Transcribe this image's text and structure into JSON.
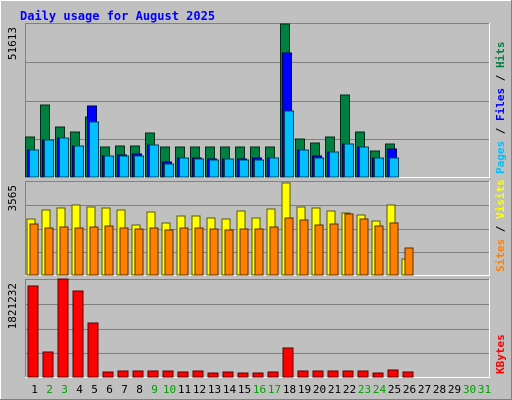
{
  "title": "Daily usage for August 2025",
  "colors": {
    "background": "#C0C0C0",
    "title": "#0000FF",
    "hits": "#008040",
    "files": "#0000FF",
    "pages": "#00C0FF",
    "visits": "#FFFF00",
    "sites": "#FF8000",
    "kbytes": "#FF0000",
    "weekend_label": "#00A000",
    "weekday_label": "#000000"
  },
  "chart_data": [
    {
      "type": "bar",
      "name": "hits-files-pages",
      "y_label_max": "51613",
      "side_labels": [
        "Pages",
        "Files",
        "Hits"
      ],
      "ylim": [
        0,
        51613
      ],
      "categories": [
        "1",
        "2",
        "3",
        "4",
        "5",
        "6",
        "7",
        "8",
        "9",
        "10",
        "11",
        "12",
        "13",
        "14",
        "15",
        "16",
        "17",
        "18",
        "19",
        "20",
        "21",
        "22",
        "23",
        "24",
        "25",
        "26",
        "27",
        "28",
        "29",
        "30",
        "31"
      ],
      "series": [
        {
          "name": "Hits",
          "values": [
            13400,
            24400,
            16800,
            15100,
            20200,
            10000,
            10400,
            10400,
            14700,
            10100,
            10100,
            10100,
            10100,
            10000,
            10000,
            10100,
            10100,
            51600,
            12800,
            11500,
            13400,
            27800,
            15100,
            8700,
            11100,
            0,
            0,
            0,
            0,
            0,
            0
          ]
        },
        {
          "name": "Files",
          "values": [
            9000,
            12600,
            13300,
            10400,
            24000,
            7100,
            7300,
            7600,
            10700,
            5100,
            6300,
            6500,
            6100,
            6000,
            6000,
            6300,
            6500,
            41800,
            9000,
            7000,
            8400,
            11000,
            10200,
            6300,
            9300,
            0,
            0,
            0,
            0,
            0,
            0
          ]
        },
        {
          "name": "Pages",
          "values": [
            9000,
            12600,
            13300,
            10400,
            18600,
            7100,
            7000,
            7000,
            10700,
            4400,
            6300,
            6100,
            5700,
            6000,
            5700,
            5600,
            6500,
            22200,
            9000,
            6500,
            8400,
            11000,
            10200,
            6300,
            6300,
            0,
            0,
            0,
            0,
            0,
            0
          ]
        }
      ]
    },
    {
      "type": "bar",
      "name": "visits-sites",
      "y_label_max": "3565",
      "side_labels": [
        "Sites",
        "Visits"
      ],
      "ylim": [
        0,
        3565
      ],
      "categories": [
        "1",
        "2",
        "3",
        "4",
        "5",
        "6",
        "7",
        "8",
        "9",
        "10",
        "11",
        "12",
        "13",
        "14",
        "15",
        "16",
        "17",
        "18",
        "19",
        "20",
        "21",
        "22",
        "23",
        "24",
        "25",
        "26",
        "27",
        "28",
        "29",
        "30",
        "31"
      ],
      "series": [
        {
          "name": "Visits",
          "values": [
            2130,
            2480,
            2550,
            2700,
            2610,
            2560,
            2480,
            1920,
            2410,
            2000,
            2250,
            2270,
            2190,
            2140,
            2470,
            2180,
            2540,
            3530,
            2610,
            2560,
            2460,
            2360,
            2300,
            2080,
            2670,
            620,
            0,
            0,
            0,
            0,
            0
          ]
        },
        {
          "name": "Sites",
          "values": [
            1950,
            1790,
            1840,
            1790,
            1850,
            1860,
            1800,
            1750,
            1800,
            1710,
            1820,
            1810,
            1780,
            1720,
            1750,
            1760,
            1830,
            2200,
            2120,
            1930,
            1960,
            2330,
            2150,
            1880,
            1980,
            1030,
            0,
            0,
            0,
            0,
            0
          ]
        }
      ]
    },
    {
      "type": "bar",
      "name": "kbytes",
      "y_label_max": "1821232",
      "side_labels": [
        "KBytes"
      ],
      "ylim": [
        0,
        1821232
      ],
      "categories": [
        "1",
        "2",
        "3",
        "4",
        "5",
        "6",
        "7",
        "8",
        "9",
        "10",
        "11",
        "12",
        "13",
        "14",
        "15",
        "16",
        "17",
        "18",
        "19",
        "20",
        "21",
        "22",
        "23",
        "24",
        "25",
        "26",
        "27",
        "28",
        "29",
        "30",
        "31"
      ],
      "series": [
        {
          "name": "KBytes",
          "values": [
            1710000,
            470000,
            1840000,
            1610000,
            1010000,
            100000,
            110000,
            110000,
            110000,
            110000,
            100000,
            110000,
            80000,
            90000,
            80000,
            80000,
            90000,
            540000,
            110000,
            110000,
            110000,
            110000,
            110000,
            80000,
            130000,
            90000,
            0,
            0,
            0,
            0,
            0
          ]
        }
      ]
    }
  ],
  "x_axis": {
    "labels": [
      "1",
      "2",
      "3",
      "4",
      "5",
      "6",
      "7",
      "8",
      "9",
      "10",
      "11",
      "12",
      "13",
      "14",
      "15",
      "16",
      "17",
      "18",
      "19",
      "20",
      "21",
      "22",
      "23",
      "24",
      "25",
      "26",
      "27",
      "28",
      "29",
      "30",
      "31"
    ],
    "weekend_days": [
      "2",
      "3",
      "9",
      "10",
      "16",
      "17",
      "23",
      "24",
      "30",
      "31"
    ]
  }
}
